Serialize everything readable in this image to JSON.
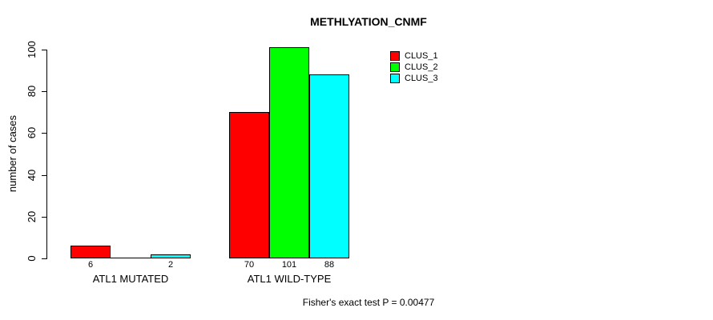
{
  "title": "METHLYATION_CNMF",
  "annotation": "Fisher's exact test P = 0.00477",
  "colors": {
    "background": "#ffffff",
    "axis": "#000000",
    "clus_1": "#ff0000",
    "clus_2": "#00ff00",
    "clus_3": "#00ffff"
  },
  "chart_data": {
    "type": "bar",
    "title": "METHLYATION_CNMF",
    "xlabel": "",
    "ylabel": "number of cases",
    "ylim": [
      0,
      100
    ],
    "yticks": [
      0,
      20,
      40,
      60,
      80,
      100
    ],
    "grid": false,
    "legend_position": "top-right",
    "categories": [
      "ATL1 MUTATED",
      "ATL1 WILD-TYPE"
    ],
    "series": [
      {
        "name": "CLUS_1",
        "color": "#ff0000",
        "values": [
          6,
          70
        ],
        "value_labels": [
          "6",
          "70"
        ]
      },
      {
        "name": "CLUS_2",
        "color": "#00ff00",
        "values": [
          0,
          101
        ],
        "value_labels": [
          "",
          "101"
        ]
      },
      {
        "name": "CLUS_3",
        "color": "#00ffff",
        "values": [
          2,
          88
        ],
        "value_labels": [
          "2",
          "88"
        ]
      }
    ],
    "annotation": "Fisher's exact test P = 0.00477"
  }
}
